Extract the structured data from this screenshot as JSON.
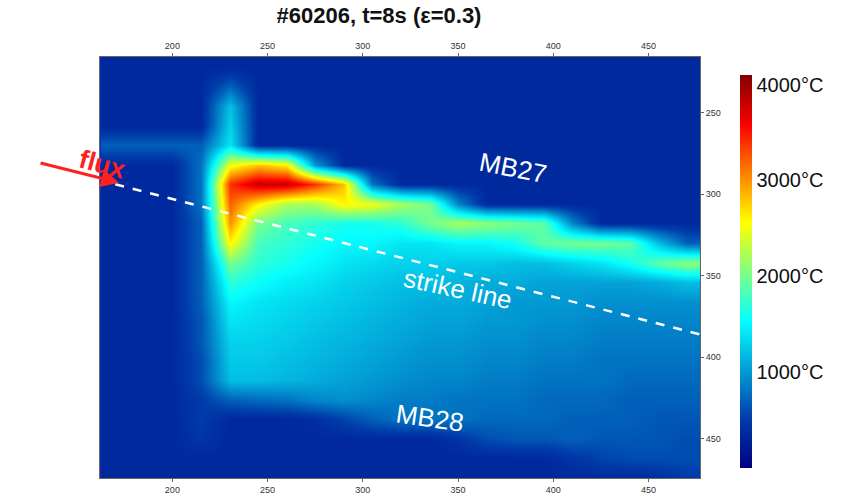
{
  "chart_data": {
    "type": "heatmap",
    "title": "#60206, t=8s (ε=0.3)",
    "color": "Jet",
    "x": [
      170,
      185,
      200,
      215,
      230,
      245,
      260,
      275,
      290,
      305,
      320,
      335,
      350,
      365,
      380,
      395,
      410,
      425,
      440,
      455,
      470
    ],
    "y": [
      222,
      234,
      246,
      258,
      270,
      282,
      294,
      306,
      318,
      330,
      342,
      354,
      366,
      378,
      390,
      402,
      414,
      426,
      438,
      450,
      462,
      474
    ],
    "z": [
      [
        350,
        350,
        350,
        350,
        350,
        350,
        350,
        350,
        350,
        350,
        350,
        350,
        350,
        350,
        350,
        350,
        350,
        350,
        350,
        350,
        350
      ],
      [
        350,
        350,
        350,
        350,
        700,
        350,
        350,
        350,
        350,
        350,
        350,
        350,
        350,
        350,
        350,
        350,
        350,
        350,
        350,
        350,
        350
      ],
      [
        350,
        350,
        350,
        350,
        1200,
        350,
        350,
        350,
        350,
        350,
        350,
        350,
        350,
        350,
        350,
        350,
        350,
        350,
        350,
        350,
        350
      ],
      [
        350,
        350,
        350,
        350,
        1300,
        350,
        350,
        350,
        350,
        350,
        350,
        350,
        350,
        350,
        350,
        350,
        350,
        350,
        350,
        350,
        350
      ],
      [
        700,
        700,
        700,
        700,
        1400,
        350,
        350,
        350,
        350,
        350,
        350,
        350,
        350,
        350,
        350,
        350,
        350,
        350,
        350,
        350,
        350
      ],
      [
        350,
        350,
        350,
        800,
        2500,
        2800,
        2600,
        1000,
        350,
        350,
        350,
        350,
        350,
        350,
        350,
        350,
        350,
        350,
        350,
        350,
        350
      ],
      [
        350,
        350,
        350,
        800,
        3400,
        3800,
        3800,
        3400,
        2800,
        800,
        350,
        350,
        350,
        350,
        350,
        350,
        350,
        350,
        350,
        350,
        350
      ],
      [
        350,
        350,
        350,
        800,
        3200,
        2600,
        2200,
        2200,
        2600,
        2500,
        2200,
        2000,
        900,
        350,
        350,
        350,
        350,
        350,
        350,
        350,
        350
      ],
      [
        350,
        350,
        350,
        700,
        3000,
        2000,
        1800,
        1700,
        1600,
        1600,
        1700,
        2000,
        2200,
        2100,
        2000,
        1900,
        900,
        350,
        350,
        350,
        350
      ],
      [
        350,
        350,
        350,
        700,
        2600,
        1800,
        1700,
        1600,
        1500,
        1500,
        1400,
        1400,
        1500,
        1500,
        1600,
        1900,
        2000,
        2000,
        1900,
        1200,
        700
      ],
      [
        350,
        350,
        350,
        700,
        2000,
        1700,
        1600,
        1500,
        1400,
        1350,
        1300,
        1300,
        1250,
        1250,
        1200,
        1200,
        1300,
        1400,
        1600,
        1900,
        2100
      ],
      [
        350,
        350,
        350,
        700,
        1700,
        1550,
        1450,
        1400,
        1300,
        1250,
        1200,
        1200,
        1150,
        1100,
        1100,
        1050,
        1050,
        1050,
        1050,
        1100,
        1200
      ],
      [
        350,
        350,
        350,
        700,
        1500,
        1400,
        1350,
        1300,
        1250,
        1200,
        1150,
        1100,
        1100,
        1050,
        1000,
        1000,
        1000,
        950,
        950,
        950,
        950
      ],
      [
        350,
        350,
        350,
        650,
        1400,
        1350,
        1300,
        1250,
        1200,
        1150,
        1100,
        1050,
        1050,
        1000,
        1000,
        950,
        950,
        900,
        900,
        900,
        900
      ],
      [
        350,
        350,
        350,
        650,
        1300,
        1300,
        1250,
        1200,
        1150,
        1100,
        1050,
        1000,
        1000,
        950,
        950,
        900,
        900,
        850,
        850,
        850,
        850
      ],
      [
        350,
        350,
        350,
        600,
        1250,
        1250,
        1200,
        1150,
        1100,
        1050,
        1000,
        950,
        950,
        900,
        900,
        850,
        850,
        800,
        800,
        800,
        800
      ],
      [
        350,
        350,
        350,
        600,
        1200,
        1200,
        1150,
        1100,
        1050,
        1000,
        950,
        900,
        900,
        850,
        850,
        800,
        800,
        800,
        750,
        750,
        750
      ],
      [
        350,
        350,
        350,
        500,
        700,
        750,
        800,
        900,
        950,
        900,
        850,
        850,
        800,
        800,
        800,
        750,
        750,
        750,
        700,
        700,
        700
      ],
      [
        350,
        350,
        350,
        500,
        350,
        350,
        350,
        400,
        550,
        700,
        800,
        800,
        800,
        750,
        750,
        750,
        700,
        700,
        700,
        650,
        650
      ],
      [
        350,
        350,
        350,
        450,
        350,
        350,
        350,
        350,
        350,
        350,
        350,
        350,
        450,
        600,
        650,
        650,
        700,
        650,
        650,
        650,
        600
      ],
      [
        350,
        350,
        350,
        350,
        350,
        350,
        350,
        350,
        350,
        350,
        350,
        350,
        350,
        350,
        350,
        350,
        450,
        550,
        600,
        600,
        600
      ],
      [
        350,
        350,
        350,
        350,
        350,
        350,
        350,
        350,
        350,
        350,
        350,
        350,
        350,
        350,
        350,
        350,
        350,
        350,
        350,
        400,
        500
      ]
    ],
    "xlim": [
      162,
      477
    ],
    "ylim": [
      474,
      216
    ],
    "xticks": [
      200,
      250,
      300,
      350,
      400,
      450
    ],
    "yticks": [
      250,
      300,
      350,
      400,
      450
    ],
    "colorbar_range": [
      0,
      4100
    ],
    "colorbar_ticks": [
      {
        "value": 1000,
        "label": "1000°C"
      },
      {
        "value": 2000,
        "label": "2000°C"
      },
      {
        "value": 3000,
        "label": "3000°C"
      },
      {
        "value": 4000,
        "label": "4000°C"
      }
    ],
    "strike_line": {
      "x": [
        170,
        477
      ],
      "y": [
        294,
        386
      ]
    },
    "annotations": [
      {
        "text": "flux",
        "color": "#ff2020"
      },
      {
        "text": "MB27"
      },
      {
        "text": "strike line"
      },
      {
        "text": "MB28"
      }
    ]
  }
}
